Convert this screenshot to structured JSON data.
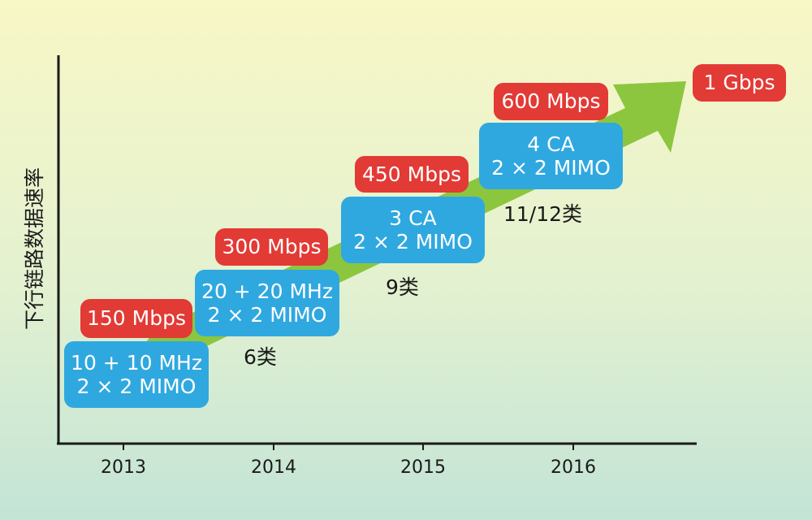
{
  "y_axis_label": "下行链路数据速率",
  "colors": {
    "arrow": "#8cc63f",
    "spec_box": "#2fa8e0",
    "speed_box": "#e23a35",
    "axis": "#1a1a1a"
  },
  "years": [
    "2013",
    "2014",
    "2015",
    "2016"
  ],
  "steps": [
    {
      "spec_line1": "10 + 10 MHz",
      "spec_line2": "2 × 2 MIMO",
      "speed": "150 Mbps",
      "category": ""
    },
    {
      "spec_line1": "20 + 20 MHz",
      "spec_line2": "2 × 2 MIMO",
      "speed": "300 Mbps",
      "category": "6类"
    },
    {
      "spec_line1": "3 CA",
      "spec_line2": "2 × 2 MIMO",
      "speed": "450 Mbps",
      "category": "9类"
    },
    {
      "spec_line1": "4 CA",
      "spec_line2": "2 × 2 MIMO",
      "speed": "600 Mbps",
      "category": "11/12类"
    }
  ],
  "target_speed": "1 Gbps"
}
